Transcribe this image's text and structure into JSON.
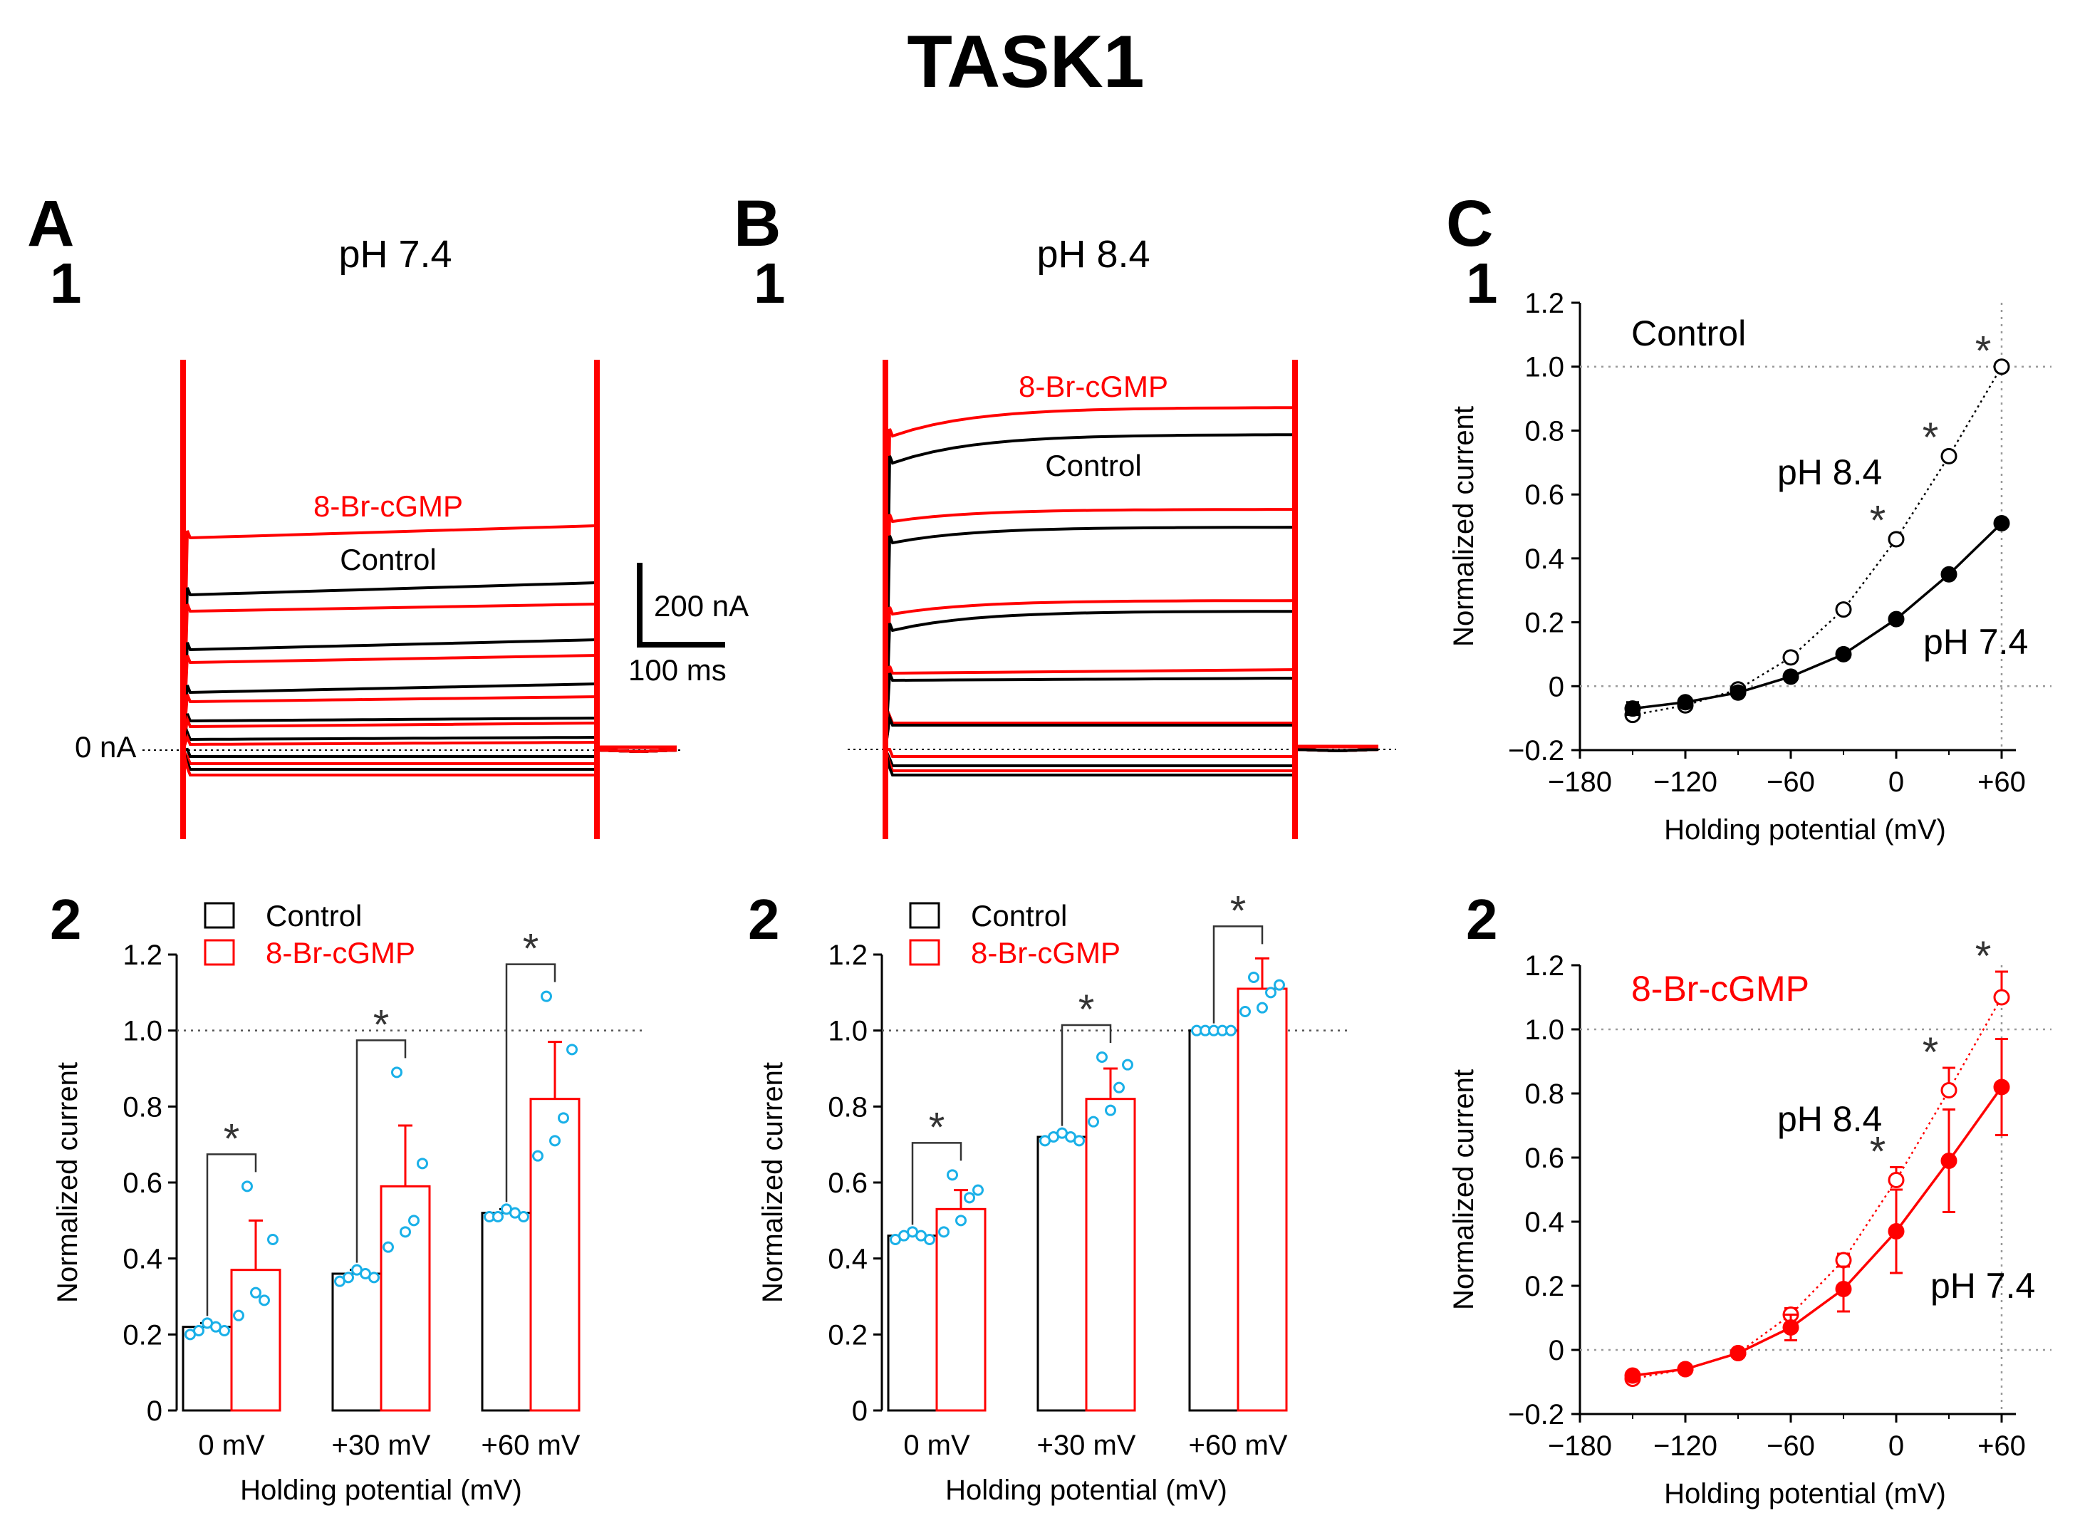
{
  "figure": {
    "title": "TASK1",
    "colors": {
      "control": "#000000",
      "treatment": "#ff0000",
      "points": "#1ab0e8",
      "star": "#333333"
    }
  },
  "panelA": {
    "letter": "A",
    "num1": "1",
    "num2": "2",
    "condition": "pH 7.4",
    "trace_label_treatment": "8-Br-cGMP",
    "trace_label_control": "Control",
    "zero_label": "0 nA",
    "scale_current": "200 nA",
    "scale_time": "100 ms"
  },
  "panelB": {
    "letter": "B",
    "num1": "1",
    "num2": "2",
    "condition": "pH 8.4",
    "trace_label_treatment": "8-Br-cGMP",
    "trace_label_control": "Control"
  },
  "panelC": {
    "letter": "C",
    "num1": "1",
    "num2": "2",
    "label1": "Control",
    "label2": "8-Br-cGMP",
    "ph84": "pH 8.4",
    "ph74": "pH 7.4"
  },
  "chart_data": [
    {
      "id": "A2",
      "type": "bar",
      "title": "",
      "categories": [
        "0 mV",
        "+30 mV",
        "+60 mV"
      ],
      "series": [
        {
          "name": "Control",
          "values": [
            0.22,
            0.36,
            0.52
          ],
          "errors": [
            0.01,
            0.01,
            0.01
          ],
          "points": [
            [
              0.2,
              0.21,
              0.23,
              0.22,
              0.21
            ],
            [
              0.34,
              0.35,
              0.37,
              0.36,
              0.35
            ],
            [
              0.51,
              0.51,
              0.53,
              0.52,
              0.51
            ]
          ]
        },
        {
          "name": "8-Br-cGMP",
          "values": [
            0.37,
            0.59,
            0.82
          ],
          "errors": [
            0.13,
            0.16,
            0.15
          ],
          "points": [
            [
              0.25,
              0.59,
              0.31,
              0.29,
              0.45
            ],
            [
              0.43,
              0.89,
              0.47,
              0.5,
              0.65
            ],
            [
              0.67,
              1.09,
              0.71,
              0.77,
              0.95
            ]
          ]
        }
      ],
      "significance": [
        "*",
        "*",
        "*"
      ],
      "xlabel": "Holding potential (mV)",
      "ylabel": "Normalized current",
      "ylim": [
        0,
        1.2
      ],
      "yticks": [
        "0",
        "0.2",
        "0.4",
        "0.6",
        "0.8",
        "1.0",
        "1.2"
      ],
      "reference_line": 1.0
    },
    {
      "id": "B2",
      "type": "bar",
      "title": "",
      "categories": [
        "0 mV",
        "+30 mV",
        "+60 mV"
      ],
      "series": [
        {
          "name": "Control",
          "values": [
            0.46,
            0.72,
            1.0
          ],
          "errors": [
            0.01,
            0.01,
            0
          ],
          "points": [
            [
              0.45,
              0.46,
              0.47,
              0.46,
              0.45
            ],
            [
              0.71,
              0.72,
              0.73,
              0.72,
              0.71
            ],
            [
              1.0,
              1.0,
              1.0,
              1.0,
              1.0
            ]
          ]
        },
        {
          "name": "8-Br-cGMP",
          "values": [
            0.53,
            0.82,
            1.11
          ],
          "errors": [
            0.05,
            0.08,
            0.08
          ],
          "points": [
            [
              0.47,
              0.62,
              0.5,
              0.56,
              0.58
            ],
            [
              0.76,
              0.93,
              0.79,
              0.85,
              0.91
            ],
            [
              1.05,
              1.14,
              1.06,
              1.1,
              1.12
            ]
          ]
        }
      ],
      "significance": [
        "*",
        "*",
        "*"
      ],
      "xlabel": "Holding potential (mV)",
      "ylabel": "Normalized current",
      "ylim": [
        0,
        1.2
      ],
      "yticks": [
        "0",
        "0.2",
        "0.4",
        "0.6",
        "0.8",
        "1.0",
        "1.2"
      ],
      "reference_line": 1.0
    },
    {
      "id": "C1",
      "type": "line",
      "x": [
        -150,
        -120,
        -90,
        -60,
        -30,
        0,
        30,
        60
      ],
      "series": [
        {
          "name": "pH 8.4",
          "style": "dotted-open",
          "values": [
            -0.09,
            -0.06,
            -0.01,
            0.09,
            0.24,
            0.46,
            0.72,
            1.0
          ],
          "errors": [
            0.01,
            0.01,
            0.01,
            0.01,
            0.01,
            0.01,
            0.01,
            0
          ]
        },
        {
          "name": "pH 7.4",
          "style": "solid-filled",
          "values": [
            -0.07,
            -0.05,
            -0.02,
            0.03,
            0.1,
            0.21,
            0.35,
            0.51
          ],
          "errors": [
            0.02,
            0.01,
            0.01,
            0.01,
            0.01,
            0.01,
            0.01,
            0.01
          ]
        }
      ],
      "significance_x": [
        0,
        30,
        60
      ],
      "xlabel": "Holding potential (mV)",
      "ylabel": "Normalized current",
      "xlim": [
        -180,
        60
      ],
      "ylim": [
        -0.2,
        1.2
      ],
      "xticks": [
        "−180",
        "−120",
        "−60",
        "0",
        "+60"
      ],
      "yticks": [
        "−0.2",
        "0",
        "0.2",
        "0.4",
        "0.6",
        "0.8",
        "1.0",
        "1.2"
      ]
    },
    {
      "id": "C2",
      "type": "line",
      "x": [
        -150,
        -120,
        -90,
        -60,
        -30,
        0,
        30,
        60
      ],
      "series": [
        {
          "name": "pH 8.4",
          "style": "dotted-open",
          "values": [
            -0.09,
            -0.06,
            -0.01,
            0.11,
            0.28,
            0.53,
            0.81,
            1.1
          ],
          "errors": [
            0.01,
            0.01,
            0.01,
            0.02,
            0.02,
            0.04,
            0.07,
            0.08
          ]
        },
        {
          "name": "pH 7.4",
          "style": "solid-filled",
          "values": [
            -0.08,
            -0.06,
            -0.01,
            0.07,
            0.19,
            0.37,
            0.59,
            0.82
          ],
          "errors": [
            0.01,
            0.01,
            0.01,
            0.04,
            0.07,
            0.13,
            0.16,
            0.15
          ]
        }
      ],
      "significance_x": [
        0,
        30,
        60
      ],
      "xlabel": "Holding potential (mV)",
      "ylabel": "Normalized current",
      "xlim": [
        -180,
        60
      ],
      "ylim": [
        -0.2,
        1.2
      ],
      "xticks": [
        "−180",
        "−120",
        "−60",
        "0",
        "+60"
      ],
      "yticks": [
        "−0.2",
        "0",
        "0.2",
        "0.4",
        "0.6",
        "0.8",
        "1.0",
        "1.2"
      ]
    }
  ]
}
